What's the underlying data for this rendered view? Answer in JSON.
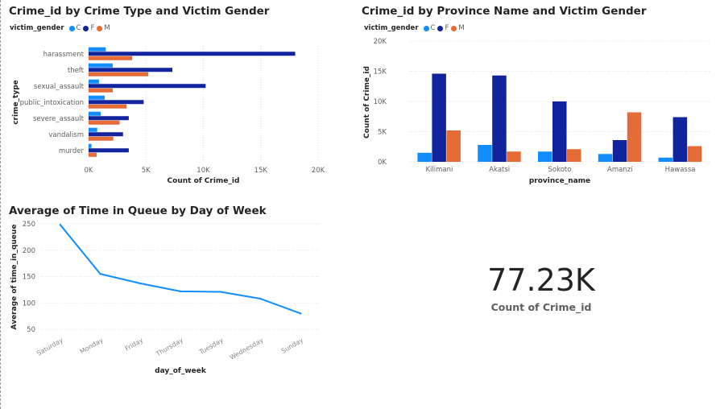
{
  "colors": {
    "C": "#118dff",
    "F": "#12239e",
    "M": "#e66c37"
  },
  "chart_data": [
    {
      "type": "bar",
      "orientation": "horizontal",
      "title": "Crime_id by Crime Type and Victim Gender",
      "legend_title": "victim_gender",
      "legend_placement": "top-left",
      "categories": [
        "harassment",
        "theft",
        "sexual_assault",
        "public_intoxication",
        "severe_assault",
        "vandalism",
        "murder"
      ],
      "series": [
        {
          "name": "C",
          "values": [
            1500,
            2100,
            900,
            1400,
            1050,
            750,
            250
          ]
        },
        {
          "name": "F",
          "values": [
            18000,
            7300,
            10200,
            4800,
            3500,
            3000,
            3500
          ]
        },
        {
          "name": "M",
          "values": [
            3800,
            5200,
            2100,
            3300,
            2700,
            2150,
            700
          ]
        }
      ],
      "xlabel": "Count of Crime_id",
      "ylabel": "crime_type",
      "xlim": [
        0,
        20000
      ],
      "xticks": [
        "0K",
        "5K",
        "10K",
        "15K",
        "20K"
      ],
      "grid": true
    },
    {
      "type": "bar",
      "orientation": "vertical",
      "title": "Crime_id by Province Name and Victim Gender",
      "legend_title": "victim_gender",
      "legend_placement": "top-left",
      "categories": [
        "Kilimani",
        "Akatsi",
        "Sokoto",
        "Amanzi",
        "Hawassa"
      ],
      "series": [
        {
          "name": "C",
          "values": [
            1500,
            2800,
            1700,
            1300,
            700
          ]
        },
        {
          "name": "F",
          "values": [
            14600,
            14300,
            10000,
            3600,
            7400
          ]
        },
        {
          "name": "M",
          "values": [
            5200,
            1700,
            2100,
            8200,
            2600
          ]
        }
      ],
      "xlabel": "province_name",
      "ylabel": "Count of Crime_id",
      "ylim": [
        0,
        20000
      ],
      "yticks": [
        "0K",
        "5K",
        "10K",
        "15K",
        "20K"
      ],
      "grid": true
    },
    {
      "type": "line",
      "title": "Average of Time in Queue by Day of Week",
      "categories": [
        "Saturday",
        "Monday",
        "Friday",
        "Thursday",
        "Tuesday",
        "Wednesday",
        "Sunday"
      ],
      "series": [
        {
          "name": "",
          "values": [
            248,
            155,
            137,
            122,
            121,
            108,
            80
          ]
        }
      ],
      "xlabel": "day_of_week",
      "ylabel": "Average of time_in_queue",
      "ylim": [
        50,
        250
      ],
      "yticks": [
        "50",
        "100",
        "150",
        "200",
        "250"
      ],
      "grid": true
    }
  ],
  "card": {
    "value": "77.23K",
    "label": "Count of Crime_id"
  }
}
